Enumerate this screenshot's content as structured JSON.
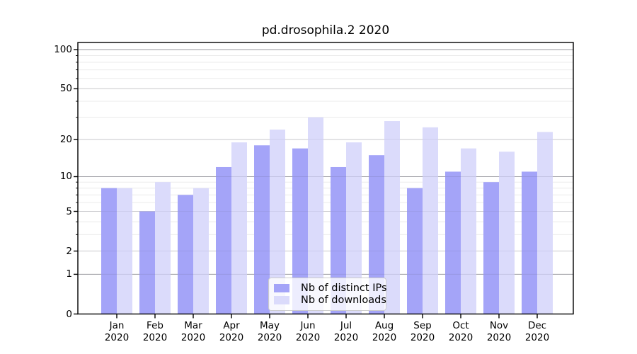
{
  "chart_data": {
    "type": "bar",
    "title": "pd.drosophila.2 2020",
    "year": "2020",
    "categories": [
      "Jan",
      "Feb",
      "Mar",
      "Apr",
      "May",
      "Jun",
      "Jul",
      "Aug",
      "Sep",
      "Oct",
      "Nov",
      "Dec"
    ],
    "series": [
      {
        "name": "Nb of distinct IPs",
        "color": "#a4a4f8",
        "values": [
          8,
          5,
          7,
          12,
          18,
          17,
          12,
          15,
          8,
          11,
          9,
          11
        ]
      },
      {
        "name": "Nb of downloads",
        "color": "#dbdbfb",
        "values": [
          8,
          9,
          8,
          19,
          24,
          30,
          19,
          28,
          25,
          17,
          16,
          23
        ]
      }
    ],
    "xlabel": "",
    "ylabel": "",
    "y_scale": "log1p",
    "y_ticks": [
      0,
      1,
      2,
      5,
      10,
      20,
      50,
      100
    ],
    "y_major_gridlines": [
      1,
      10,
      100
    ],
    "y_mid_gridlines": [
      2,
      5,
      20,
      50
    ],
    "y_minor_gridlines": [
      3,
      4,
      6,
      7,
      8,
      9,
      30,
      40,
      60,
      70,
      80,
      90
    ],
    "ylim": [
      0,
      114
    ],
    "grid": true,
    "legend_position": "lower-center",
    "colors": {
      "axis": "#000000",
      "text": "#000000",
      "grid_major": "#b2b2b2",
      "grid_mid": "#d6d6d6",
      "grid_minor": "#ebebeb",
      "legend_background": "rgba(255,255,255,0.8)",
      "legend_border": "#cccccc"
    }
  }
}
